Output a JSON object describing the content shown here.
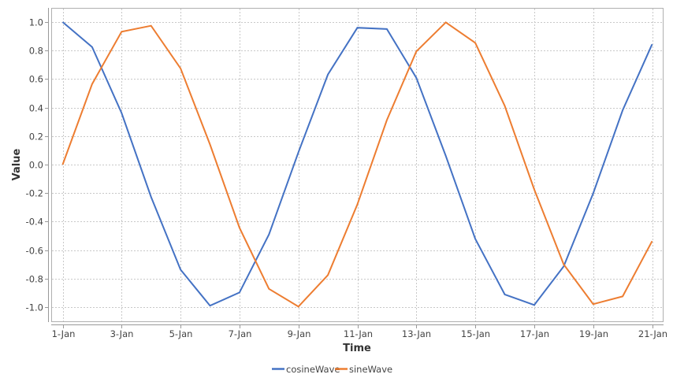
{
  "chart_data": {
    "type": "line",
    "title": "",
    "xlabel": "Time",
    "ylabel": "Value",
    "ylim": [
      -1.1,
      1.1
    ],
    "grid": true,
    "legend_position": "bottom",
    "x": [
      "1-Jan",
      "2-Jan",
      "3-Jan",
      "4-Jan",
      "5-Jan",
      "6-Jan",
      "7-Jan",
      "8-Jan",
      "9-Jan",
      "10-Jan",
      "11-Jan",
      "12-Jan",
      "13-Jan",
      "14-Jan",
      "15-Jan",
      "16-Jan",
      "17-Jan",
      "18-Jan",
      "19-Jan",
      "20-Jan",
      "21-Jan"
    ],
    "x_tick_labels": [
      "1-Jan",
      "3-Jan",
      "5-Jan",
      "7-Jan",
      "9-Jan",
      "11-Jan",
      "13-Jan",
      "15-Jan",
      "17-Jan",
      "19-Jan",
      "21-Jan"
    ],
    "y_ticks": [
      1.0,
      0.8,
      0.6,
      0.4,
      0.2,
      0.0,
      -0.2,
      -0.4,
      -0.6,
      -0.8,
      -1.0
    ],
    "y_tick_labels": [
      "1.0",
      "0.8",
      "0.6",
      "0.4",
      "0.2",
      "0.0",
      "-0.2",
      "-0.4",
      "-0.6",
      "-0.8",
      "-1.0"
    ],
    "series": [
      {
        "name": "cosineWave",
        "color": "#4472c4",
        "values": [
          1.0,
          0.825,
          0.362,
          -0.227,
          -0.737,
          -0.99,
          -0.897,
          -0.49,
          0.087,
          0.632,
          0.96,
          0.951,
          0.609,
          0.061,
          -0.521,
          -0.911,
          -0.985,
          -0.714,
          -0.202,
          0.381,
          0.844
        ]
      },
      {
        "name": "sineWave",
        "color": "#ed7d31",
        "values": [
          0.0,
          0.565,
          0.932,
          0.974,
          0.675,
          0.141,
          -0.443,
          -0.872,
          -0.996,
          -0.775,
          -0.279,
          0.312,
          0.794,
          0.998,
          0.854,
          0.412,
          -0.174,
          -0.7,
          -0.979,
          -0.925,
          -0.537
        ]
      }
    ]
  },
  "legend": {
    "items": [
      {
        "label": "cosineWave",
        "color": "#4472c4"
      },
      {
        "label": "sineWave",
        "color": "#ed7d31"
      }
    ]
  }
}
